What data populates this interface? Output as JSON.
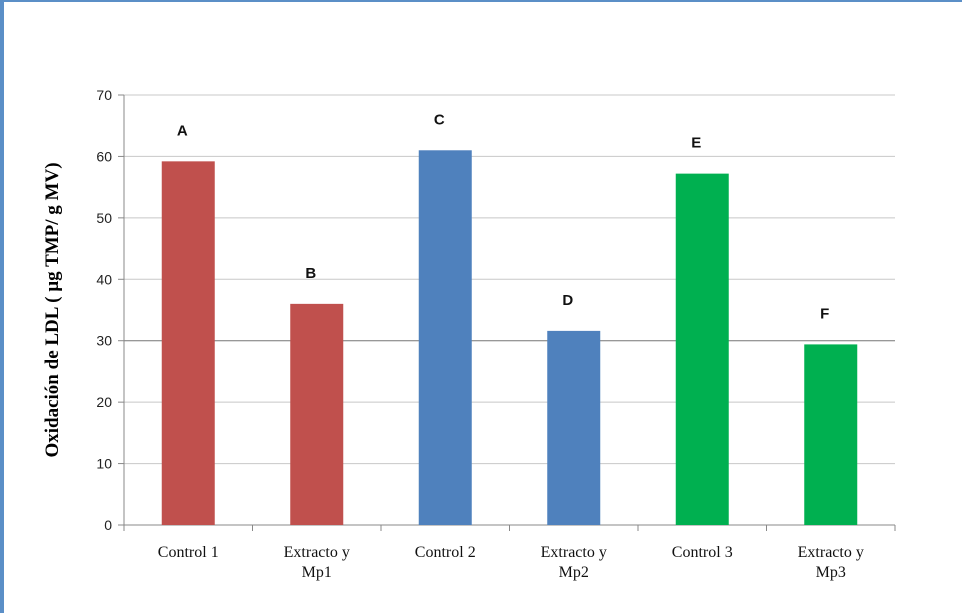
{
  "chart_data": {
    "type": "bar",
    "title": "",
    "xlabel": "",
    "ylabel": "Oxidación de LDL ( µg TMP/ g MV)",
    "ylim": [
      0,
      70
    ],
    "yticks": [
      0,
      10,
      20,
      30,
      40,
      50,
      60,
      70
    ],
    "grid": true,
    "legend": "none",
    "categories": [
      [
        "Control 1"
      ],
      [
        "Extracto y",
        "Mp1"
      ],
      [
        "Control 2"
      ],
      [
        "Extracto y",
        "Mp2"
      ],
      [
        "Control 3"
      ],
      [
        "Extracto y",
        "Mp3"
      ]
    ],
    "values": [
      59.2,
      36.0,
      61.0,
      31.6,
      57.2,
      29.4
    ],
    "data_labels": [
      "A",
      "B",
      "C",
      "D",
      "E",
      "F"
    ],
    "colors": [
      "#c0504d",
      "#c0504d",
      "#4f81bd",
      "#4f81bd",
      "#00b050",
      "#00b050"
    ]
  }
}
